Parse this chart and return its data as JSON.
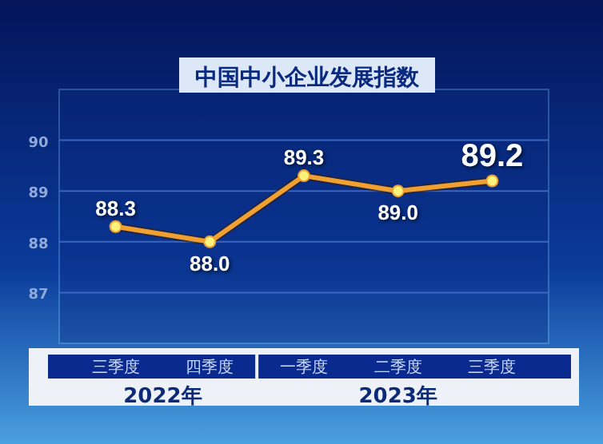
{
  "chart_data": {
    "type": "line",
    "title": "中国中小企业发展指数",
    "categories": [
      "三季度",
      "四季度",
      "一季度",
      "二季度",
      "三季度"
    ],
    "series": [
      {
        "color": "#f0a030",
        "values": [
          88.3,
          88.0,
          89.3,
          89.0,
          89.2
        ],
        "value_labels": [
          "88.3",
          "88.0",
          "89.3",
          "89.0",
          "89.2"
        ]
      }
    ],
    "ylim": [
      86,
      91
    ],
    "yticks": [
      87,
      88,
      89,
      90
    ],
    "grid": "y",
    "marker": "circle",
    "line_style": "solid",
    "annotations": [
      "2022年",
      "2023年"
    ]
  }
}
